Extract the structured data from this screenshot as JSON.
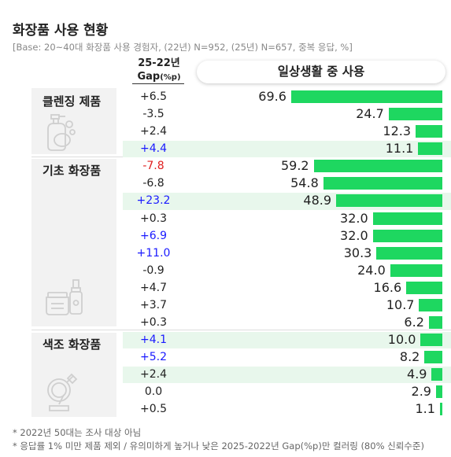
{
  "title": "화장품 사용 현황",
  "base": "[Base: 20~40대 화장품 사용 경험자, (22년) N=952, (25년) N=657, 중복 응답, %]",
  "gap_header": {
    "line1": "25-22년",
    "line2": "Gap",
    "line2_unit": "(%p)"
  },
  "column_title": "일상생활 중 사용",
  "colors": {
    "bar": "#1ed760",
    "highlight_row": "#e8f7ec",
    "gap_up": "#1a1aff",
    "gap_down": "#e02020",
    "gap_neutral": "#222222"
  },
  "categories": [
    {
      "label": "클렌징 제품",
      "icon": "cleansing-icon"
    },
    {
      "label": "기초 화장품",
      "icon": "skincare-icon"
    },
    {
      "label": "색조 화장품",
      "icon": "makeup-icon"
    }
  ],
  "chart_data": {
    "type": "bar",
    "orientation": "horizontal",
    "title": "일상생활 중 사용",
    "value_unit": "%",
    "rows": [
      {
        "category": "클렌징 제품",
        "value": 69.6,
        "gap": "+6.5",
        "gap_status": "neutral",
        "highlight": false
      },
      {
        "category": "클렌징 제품",
        "value": 24.7,
        "gap": "-3.5",
        "gap_status": "neutral",
        "highlight": false
      },
      {
        "category": "클렌징 제품",
        "value": 12.3,
        "gap": "+2.4",
        "gap_status": "neutral",
        "highlight": false
      },
      {
        "category": "클렌징 제품",
        "value": 11.1,
        "gap": "+4.4",
        "gap_status": "up",
        "highlight": true
      },
      {
        "category": "기초 화장품",
        "value": 59.2,
        "gap": "-7.8",
        "gap_status": "down",
        "highlight": false
      },
      {
        "category": "기초 화장품",
        "value": 54.8,
        "gap": "-6.8",
        "gap_status": "neutral",
        "highlight": false
      },
      {
        "category": "기초 화장품",
        "value": 48.9,
        "gap": "+23.2",
        "gap_status": "up",
        "highlight": true
      },
      {
        "category": "기초 화장품",
        "value": 32.0,
        "gap": "+0.3",
        "gap_status": "neutral",
        "highlight": false
      },
      {
        "category": "기초 화장품",
        "value": 32.0,
        "gap": "+6.9",
        "gap_status": "up",
        "highlight": false
      },
      {
        "category": "기초 화장품",
        "value": 30.3,
        "gap": "+11.0",
        "gap_status": "up",
        "highlight": false
      },
      {
        "category": "기초 화장품",
        "value": 24.0,
        "gap": "-0.9",
        "gap_status": "neutral",
        "highlight": false
      },
      {
        "category": "기초 화장품",
        "value": 16.6,
        "gap": "+4.7",
        "gap_status": "neutral",
        "highlight": false
      },
      {
        "category": "기초 화장품",
        "value": 10.7,
        "gap": "+3.7",
        "gap_status": "neutral",
        "highlight": false
      },
      {
        "category": "기초 화장품",
        "value": 6.2,
        "gap": "+0.3",
        "gap_status": "neutral",
        "highlight": false
      },
      {
        "category": "색조 화장품",
        "value": 10.0,
        "gap": "+4.1",
        "gap_status": "up",
        "highlight": true
      },
      {
        "category": "색조 화장품",
        "value": 8.2,
        "gap": "+5.2",
        "gap_status": "up",
        "highlight": false
      },
      {
        "category": "색조 화장품",
        "value": 4.9,
        "gap": "+2.4",
        "gap_status": "neutral",
        "highlight": true
      },
      {
        "category": "색조 화장품",
        "value": 2.9,
        "gap": "0.0",
        "gap_status": "neutral",
        "highlight": false
      },
      {
        "category": "색조 화장품",
        "value": 1.1,
        "gap": "+0.5",
        "gap_status": "neutral",
        "highlight": false
      }
    ]
  },
  "footnotes": [
    "* 2022년 50대는 조사 대상 아님",
    "* 응답률 1% 미만 제품 제외 / 유의미하게 높거나 낮은 2025-2022년 Gap(%p)만 컬러링 (80% 신뢰수준)"
  ]
}
